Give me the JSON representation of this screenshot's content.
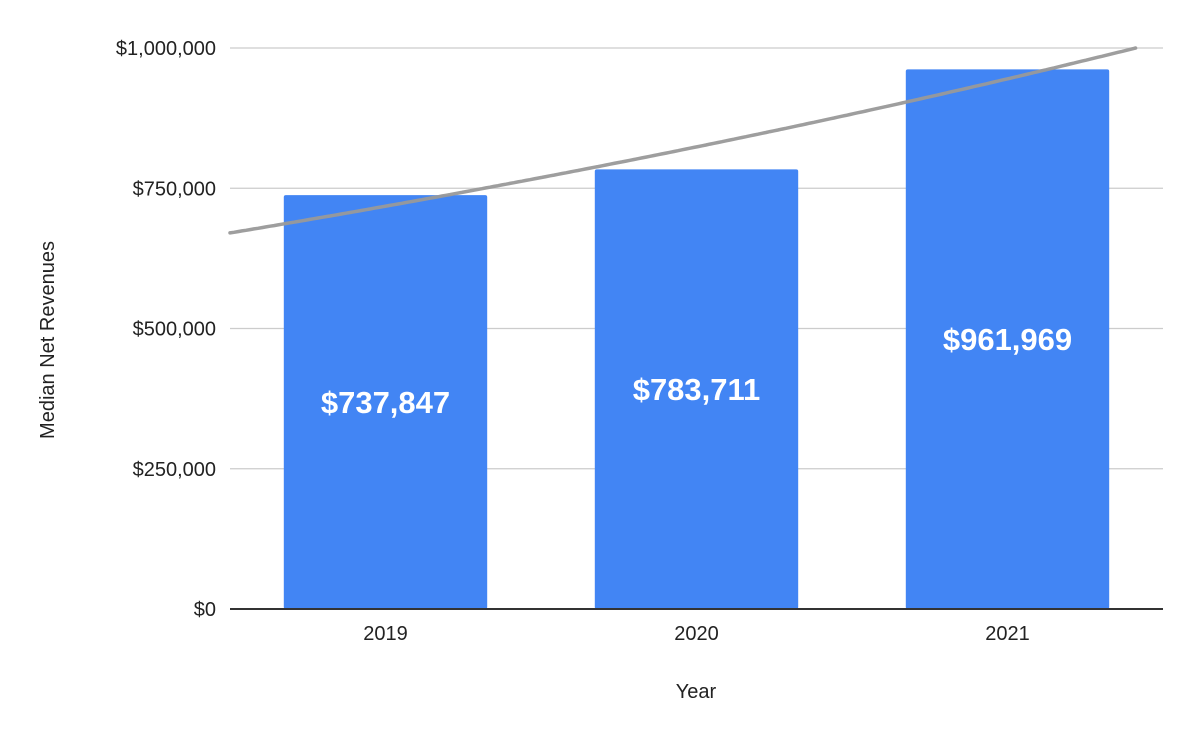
{
  "chart_data": {
    "type": "bar",
    "title": "",
    "xlabel": "Year",
    "ylabel": "Median Net Revenues",
    "categories": [
      "2019",
      "2020",
      "2021"
    ],
    "series": [
      {
        "values": [
          737847,
          783711,
          961969
        ],
        "color": "#4285f4",
        "data_labels": [
          "$737,847",
          "$783,711",
          "$961,969"
        ]
      }
    ],
    "trendline": {
      "type": "exponential",
      "color": "#999999",
      "values_at_categories": [
        718000,
        820000,
        945000
      ]
    },
    "ylim": [
      0,
      1000000
    ],
    "y_ticks": [
      0,
      250000,
      500000,
      750000,
      1000000
    ],
    "y_tick_labels": [
      "$0",
      "$250,000",
      "$500,000",
      "$750,000",
      "$1,000,000"
    ],
    "grid": true,
    "legend": "none"
  }
}
